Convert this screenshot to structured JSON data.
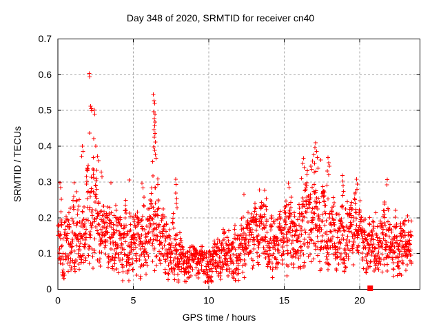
{
  "figure": {
    "background": "#ffffff",
    "frame_color": "#000000"
  },
  "chart_data": {
    "type": "scatter",
    "title": "Day 348 of 2020, SRMTID for receiver cn40",
    "xlabel": "GPS time / hours",
    "ylabel": "SRMTID / TECUs",
    "xlim": [
      0,
      24
    ],
    "ylim": [
      0,
      0.7
    ],
    "xticks": {
      "values": [
        0,
        5,
        10,
        15,
        20
      ],
      "labels": [
        "0",
        "5",
        "10",
        "15",
        "20"
      ]
    },
    "yticks": {
      "values": [
        0,
        0.1,
        0.2,
        0.3,
        0.4,
        0.5,
        0.6,
        0.7
      ],
      "labels": [
        "0",
        "0.1",
        "0.2",
        "0.3",
        "0.4",
        "0.5",
        "0.6",
        "0.7"
      ]
    },
    "grid": {
      "visible": true,
      "style": "dashed",
      "color": "#a8a8a8"
    },
    "legend": {
      "visible": false
    },
    "marker": {
      "shape": "plus",
      "color": "#ff0000",
      "size": 7
    },
    "x_data_range": [
      0.02,
      23.45
    ],
    "points_per_hour": 96,
    "envelope_format": [
      "hour",
      "y_min",
      "y_typical",
      "y_max"
    ],
    "density_envelope": [
      [
        0.0,
        0.07,
        0.13,
        0.24
      ],
      [
        0.25,
        0.06,
        0.12,
        0.3
      ],
      [
        0.6,
        0.05,
        0.1,
        0.2
      ],
      [
        1.0,
        0.06,
        0.12,
        0.3
      ],
      [
        1.5,
        0.07,
        0.14,
        0.33
      ],
      [
        1.9,
        0.08,
        0.16,
        0.4
      ],
      [
        2.2,
        0.09,
        0.18,
        0.47
      ],
      [
        2.55,
        0.08,
        0.17,
        0.42
      ],
      [
        2.9,
        0.08,
        0.15,
        0.33
      ],
      [
        3.3,
        0.07,
        0.13,
        0.3
      ],
      [
        3.7,
        0.06,
        0.13,
        0.28
      ],
      [
        4.1,
        0.05,
        0.11,
        0.24
      ],
      [
        4.5,
        0.05,
        0.11,
        0.27
      ],
      [
        4.8,
        0.05,
        0.12,
        0.3
      ],
      [
        5.2,
        0.06,
        0.12,
        0.22
      ],
      [
        5.6,
        0.06,
        0.13,
        0.3
      ],
      [
        6.0,
        0.07,
        0.13,
        0.24
      ],
      [
        6.3,
        0.08,
        0.16,
        0.46
      ],
      [
        6.55,
        0.08,
        0.15,
        0.38
      ],
      [
        6.9,
        0.06,
        0.12,
        0.24
      ],
      [
        7.3,
        0.05,
        0.1,
        0.18
      ],
      [
        7.7,
        0.04,
        0.09,
        0.24
      ],
      [
        7.9,
        0.04,
        0.09,
        0.29
      ],
      [
        8.2,
        0.03,
        0.08,
        0.14
      ],
      [
        8.6,
        0.03,
        0.07,
        0.12
      ],
      [
        9.0,
        0.04,
        0.08,
        0.13
      ],
      [
        9.5,
        0.03,
        0.07,
        0.12
      ],
      [
        10.0,
        0.03,
        0.07,
        0.12
      ],
      [
        10.5,
        0.04,
        0.08,
        0.14
      ],
      [
        11.0,
        0.05,
        0.09,
        0.17
      ],
      [
        11.5,
        0.05,
        0.1,
        0.16
      ],
      [
        12.0,
        0.05,
        0.11,
        0.2
      ],
      [
        12.35,
        0.06,
        0.12,
        0.26
      ],
      [
        12.7,
        0.06,
        0.12,
        0.21
      ],
      [
        13.0,
        0.07,
        0.13,
        0.24
      ],
      [
        13.4,
        0.07,
        0.14,
        0.28
      ],
      [
        13.8,
        0.07,
        0.13,
        0.27
      ],
      [
        14.2,
        0.06,
        0.12,
        0.22
      ],
      [
        14.6,
        0.06,
        0.12,
        0.24
      ],
      [
        15.0,
        0.06,
        0.12,
        0.25
      ],
      [
        15.4,
        0.07,
        0.14,
        0.29
      ],
      [
        15.8,
        0.07,
        0.13,
        0.26
      ],
      [
        16.2,
        0.08,
        0.15,
        0.36
      ],
      [
        16.6,
        0.09,
        0.17,
        0.39
      ],
      [
        17.0,
        0.1,
        0.19,
        0.4
      ],
      [
        17.4,
        0.09,
        0.18,
        0.37
      ],
      [
        17.8,
        0.09,
        0.16,
        0.36
      ],
      [
        18.1,
        0.08,
        0.15,
        0.32
      ],
      [
        18.5,
        0.08,
        0.14,
        0.27
      ],
      [
        18.9,
        0.08,
        0.15,
        0.31
      ],
      [
        19.3,
        0.08,
        0.14,
        0.27
      ],
      [
        19.7,
        0.09,
        0.15,
        0.3
      ],
      [
        20.1,
        0.07,
        0.13,
        0.24
      ],
      [
        20.5,
        0.06,
        0.12,
        0.21
      ],
      [
        21.0,
        0.06,
        0.11,
        0.22
      ],
      [
        21.4,
        0.06,
        0.12,
        0.24
      ],
      [
        21.8,
        0.07,
        0.13,
        0.3
      ],
      [
        22.2,
        0.06,
        0.11,
        0.23
      ],
      [
        22.6,
        0.05,
        0.1,
        0.24
      ],
      [
        23.0,
        0.06,
        0.11,
        0.2
      ],
      [
        23.2,
        0.05,
        0.1,
        0.21
      ],
      [
        23.45,
        0.06,
        0.11,
        0.2
      ]
    ],
    "outliers": [
      [
        2.08,
        0.604
      ],
      [
        2.11,
        0.594
      ],
      [
        2.17,
        0.512
      ],
      [
        2.21,
        0.505
      ],
      [
        2.24,
        0.499
      ],
      [
        2.42,
        0.501
      ],
      [
        2.45,
        0.49
      ],
      [
        2.1,
        0.437
      ],
      [
        2.38,
        0.421
      ],
      [
        2.52,
        0.4
      ],
      [
        1.62,
        0.4
      ],
      [
        1.66,
        0.386
      ],
      [
        1.58,
        0.372
      ],
      [
        2.62,
        0.372
      ],
      [
        2.7,
        0.36
      ],
      [
        2.88,
        0.328
      ],
      [
        2.93,
        0.314
      ],
      [
        6.33,
        0.545
      ],
      [
        6.37,
        0.527
      ],
      [
        6.41,
        0.52
      ],
      [
        6.35,
        0.497
      ],
      [
        6.43,
        0.49
      ],
      [
        6.39,
        0.477
      ],
      [
        6.45,
        0.468
      ],
      [
        6.41,
        0.457
      ],
      [
        6.37,
        0.446
      ],
      [
        6.44,
        0.436
      ],
      [
        6.4,
        0.425
      ],
      [
        6.47,
        0.412
      ],
      [
        6.34,
        0.398
      ],
      [
        6.42,
        0.389
      ],
      [
        6.46,
        0.377
      ],
      [
        6.5,
        0.366
      ],
      [
        6.29,
        0.357
      ],
      [
        7.8,
        0.308
      ],
      [
        7.84,
        0.293
      ],
      [
        7.82,
        0.269
      ],
      [
        7.87,
        0.254
      ],
      [
        7.85,
        0.24
      ],
      [
        7.9,
        0.228
      ],
      [
        17.08,
        0.41
      ],
      [
        17.04,
        0.396
      ],
      [
        17.14,
        0.386
      ],
      [
        16.96,
        0.376
      ],
      [
        17.19,
        0.368
      ],
      [
        16.87,
        0.359
      ],
      [
        17.01,
        0.352
      ],
      [
        16.77,
        0.344
      ],
      [
        17.24,
        0.338
      ],
      [
        17.1,
        0.33
      ],
      [
        17.9,
        0.368
      ],
      [
        17.94,
        0.354
      ],
      [
        17.99,
        0.344
      ],
      [
        17.86,
        0.331
      ],
      [
        17.96,
        0.32
      ],
      [
        16.28,
        0.366
      ],
      [
        16.24,
        0.352
      ],
      [
        16.33,
        0.34
      ],
      [
        16.15,
        0.31
      ],
      [
        18.86,
        0.318
      ],
      [
        18.89,
        0.303
      ],
      [
        18.91,
        0.289
      ],
      [
        18.93,
        0.274
      ],
      [
        18.88,
        0.262
      ],
      [
        19.79,
        0.308
      ],
      [
        19.84,
        0.294
      ],
      [
        19.82,
        0.28
      ],
      [
        21.84,
        0.307
      ],
      [
        21.8,
        0.292
      ],
      [
        12.32,
        0.265
      ],
      [
        13.36,
        0.278
      ],
      [
        13.71,
        0.277
      ],
      [
        15.28,
        0.297
      ],
      [
        15.33,
        0.284
      ],
      [
        0.14,
        0.298
      ],
      [
        0.19,
        0.284
      ],
      [
        1.08,
        0.298
      ],
      [
        3.52,
        0.298
      ],
      [
        4.72,
        0.306
      ],
      [
        5.58,
        0.297
      ],
      [
        5.63,
        0.283
      ],
      [
        10.97,
        0.168
      ],
      [
        11.02,
        0.158
      ],
      [
        23.18,
        0.205
      ],
      [
        23.22,
        0.192
      ]
    ],
    "special_points": [
      {
        "x": 20.7,
        "y": 0,
        "marker": "filled-square",
        "color": "#ff0000"
      }
    ]
  }
}
